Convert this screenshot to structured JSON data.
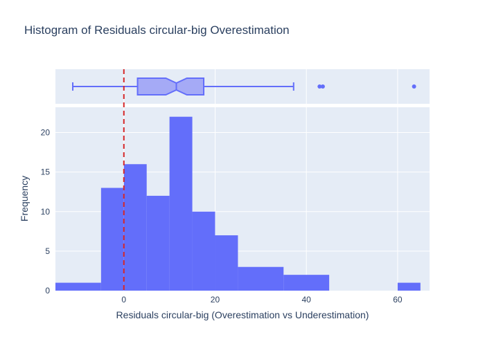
{
  "chart_data": {
    "type": "histogram",
    "title": "Histogram of Residuals circular-big Overestimation",
    "xlabel": "Residuals circular-big (Overestimation vs Underestimation)",
    "ylabel": "Frequency",
    "xlim": [
      -15,
      67
    ],
    "ylim": [
      0,
      23.2
    ],
    "x_ticks": [
      0,
      20,
      40,
      60
    ],
    "y_ticks": [
      0,
      5,
      10,
      15,
      20
    ],
    "grid": true,
    "bins": [
      {
        "start": -15,
        "end": -5,
        "count": 1
      },
      {
        "start": -5,
        "end": 0,
        "count": 13
      },
      {
        "start": 0,
        "end": 5,
        "count": 16
      },
      {
        "start": 5,
        "end": 10,
        "count": 12
      },
      {
        "start": 10,
        "end": 15,
        "count": 22
      },
      {
        "start": 15,
        "end": 20,
        "count": 10
      },
      {
        "start": 20,
        "end": 25,
        "count": 7
      },
      {
        "start": 25,
        "end": 35,
        "count": 3
      },
      {
        "start": 35,
        "end": 45,
        "count": 2
      },
      {
        "start": 60,
        "end": 65,
        "count": 1
      }
    ],
    "box_plot": {
      "whisker_low": -11.2,
      "q1": 3,
      "median": 11.5,
      "q3": 17.5,
      "whisker_high": 37.2,
      "notch_low": 9.2,
      "notch_high": 13.8,
      "outliers": [
        42.9,
        43.6,
        63.6
      ]
    },
    "reference_line": {
      "x": 0,
      "style": "dashed",
      "color": "#d62728"
    },
    "colors": {
      "bar": "#636efa",
      "box_fill": "#a5aaf6",
      "plot_bg": "#e5ecf6",
      "text": "#2a3f5f"
    }
  }
}
